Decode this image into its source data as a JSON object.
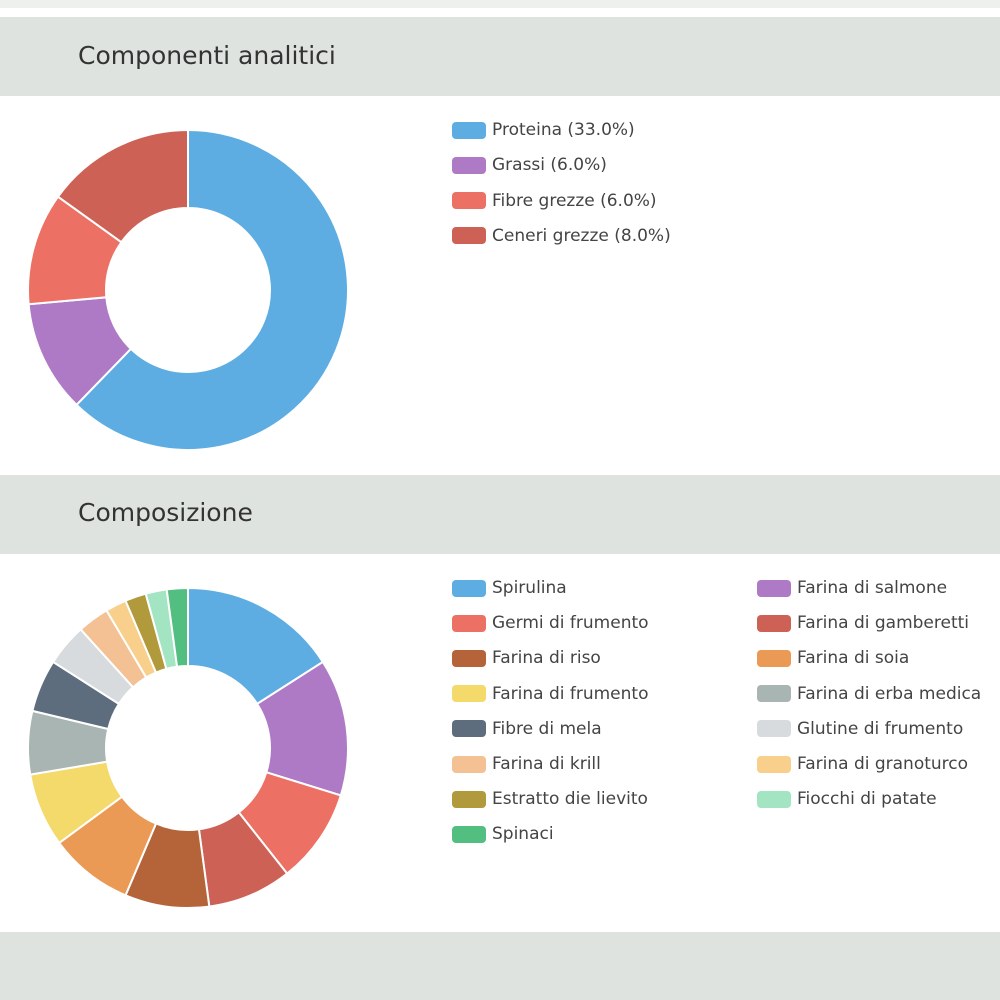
{
  "sections": [
    {
      "title": "Componenti analitici"
    },
    {
      "title": "Composizione"
    }
  ],
  "chart_data": [
    {
      "type": "pie",
      "variant": "donut",
      "title": "Componenti analitici",
      "legend_position": "right",
      "categories": [
        "Proteina (33.0%)",
        "Grassi (6.0%)",
        "Fibre grezze (6.0%)",
        "Ceneri grezze (8.0%)"
      ],
      "values": [
        33.0,
        6.0,
        6.0,
        8.0
      ],
      "colors": [
        "#5dade2",
        "#af7ac5",
        "#ec7063",
        "#cd6155"
      ]
    },
    {
      "type": "pie",
      "variant": "donut",
      "title": "Composizione",
      "legend_position": "right",
      "legend_columns": 2,
      "categories": [
        "Spirulina",
        "Farina di salmone",
        "Germi di frumento",
        "Farina di gamberetti",
        "Farina di riso",
        "Farina di soia",
        "Farina di frumento",
        "Farina di erba medica",
        "Fibre di mela",
        "Glutine di frumento",
        "Farina di krill",
        "Farina di granoturco",
        "Estratto die lievito",
        "Fiocchi di patate",
        "Spinaci"
      ],
      "values": [
        15,
        13,
        9,
        8,
        8,
        8,
        7,
        6,
        5,
        4,
        3,
        2,
        2,
        2,
        2
      ],
      "colors": [
        "#5dade2",
        "#af7ac5",
        "#ec7063",
        "#cd6155",
        "#b5643a",
        "#eb9a55",
        "#f4d96b",
        "#a8b5b3",
        "#5d6d7e",
        "#d7dbdd",
        "#f3c193",
        "#f8cf8b",
        "#b09a3c",
        "#a3e4c3",
        "#52be80"
      ]
    }
  ]
}
